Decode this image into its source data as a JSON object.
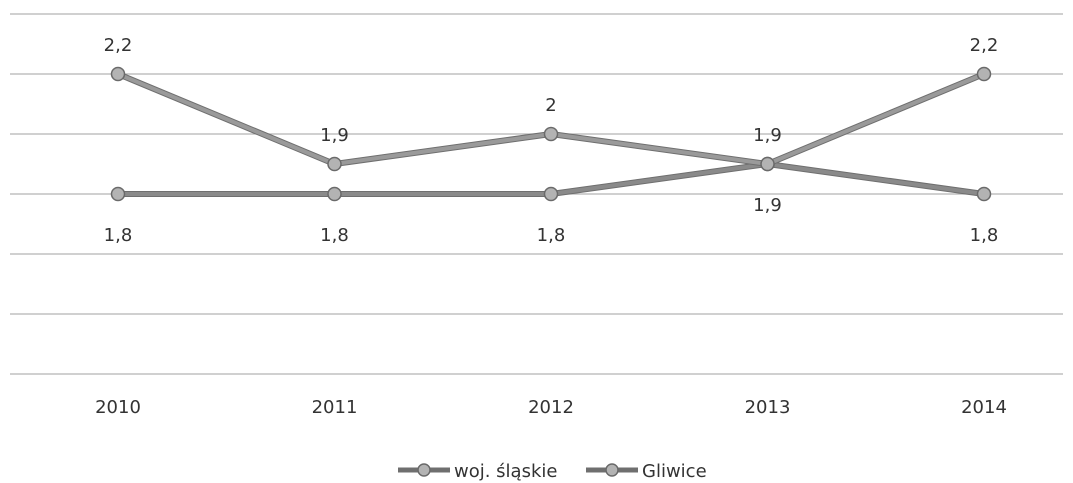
{
  "chart_data": {
    "type": "line",
    "categories": [
      "2010",
      "2011",
      "2012",
      "2013",
      "2014"
    ],
    "series": [
      {
        "name": "woj. śląskie",
        "values": [
          1.8,
          1.8,
          1.8,
          1.9,
          1.8
        ],
        "labels": [
          "1,8",
          "1,8",
          "1,8",
          "1,9",
          "1,8"
        ],
        "color": "#8a8a8a"
      },
      {
        "name": "Gliwice",
        "values": [
          2.2,
          1.9,
          2.0,
          1.9,
          2.2
        ],
        "labels": [
          "2,2",
          "1,9",
          "2",
          "1,9",
          "2,2"
        ],
        "color": "#9a9a9a"
      }
    ],
    "ylim": [
      1.2,
      2.4
    ],
    "grid": true,
    "legend": "bottom"
  }
}
